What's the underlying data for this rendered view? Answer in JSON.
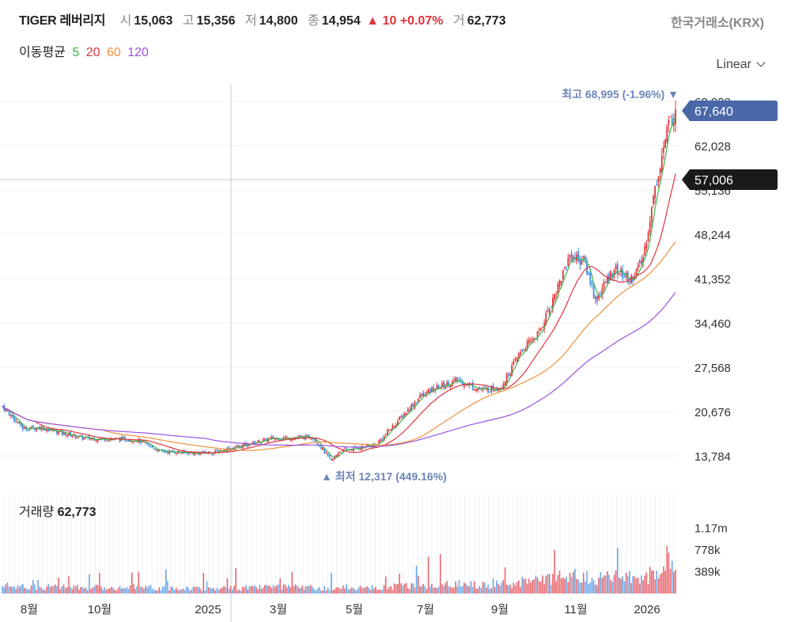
{
  "header": {
    "name": "TIGER 레버리지",
    "open_label": "시",
    "open": "15,063",
    "high_label": "고",
    "high": "15,356",
    "low_label": "저",
    "low": "14,800",
    "close_label": "종",
    "close": "14,954",
    "change": "▲ 10 +0.07%",
    "volume_label": "거",
    "volume": "62,773",
    "exchange": "한국거래소(KRX)"
  },
  "moving_average": {
    "label": "이동평균",
    "periods": [
      {
        "value": "5",
        "color": "#3bb54a"
      },
      {
        "value": "20",
        "color": "#e0353f"
      },
      {
        "value": "60",
        "color": "#f0913a"
      },
      {
        "value": "120",
        "color": "#9a52e0"
      }
    ]
  },
  "scale_selector": "Linear",
  "colors": {
    "up": "#e0353f",
    "down": "#3c8be0",
    "price_tag": "#4a67a8",
    "crosshair_tag": "#1a1a1a",
    "annot": "#6c85b8"
  },
  "annotations": {
    "high": "최고 68,995 (-1.96%) ▼",
    "low": "▲ 최저 12,317 (449.16%)",
    "last_price": "67,640",
    "crosshair_price": "57,006"
  },
  "volume_panel": {
    "label": "거래량",
    "value": "62,773"
  },
  "chart_data": {
    "type": "candlestick",
    "title": "TIGER 레버리지",
    "y_ticks": [
      "68,920",
      "62,028",
      "55,136",
      "48,244",
      "41,352",
      "34,460",
      "27,568",
      "20,676",
      "13,784"
    ],
    "y_tick_values": [
      68920,
      62028,
      55136,
      48244,
      41352,
      34460,
      27568,
      20676,
      13784
    ],
    "x_ticks": [
      "8월",
      "10월",
      "2025",
      "3월",
      "5월",
      "7월",
      "9월",
      "11월",
      "2026"
    ],
    "volume_ticks": [
      "1.17m",
      "778k",
      "389k"
    ],
    "volume_tick_values": [
      1170000,
      778000,
      389000
    ],
    "close_path": [
      [
        "2024-07-15",
        21500
      ],
      [
        "2024-08-01",
        18000
      ],
      [
        "2024-08-15",
        18200
      ],
      [
        "2024-09-20",
        16500
      ],
      [
        "2024-11-01",
        16300
      ],
      [
        "2024-11-20",
        14500
      ],
      [
        "2024-12-20",
        14200
      ],
      [
        "2025-01-02",
        14300
      ],
      [
        "2025-01-25",
        15300
      ],
      [
        "2025-02-20",
        16500
      ],
      [
        "2025-03-25",
        16700
      ],
      [
        "2025-04-09",
        12900
      ],
      [
        "2025-04-15",
        14500
      ],
      [
        "2025-05-15",
        15500
      ],
      [
        "2025-06-01",
        19000
      ],
      [
        "2025-06-20",
        23000
      ],
      [
        "2025-07-05",
        24500
      ],
      [
        "2025-07-20",
        25500
      ],
      [
        "2025-08-10",
        24000
      ],
      [
        "2025-08-25",
        24500
      ],
      [
        "2025-09-10",
        30000
      ],
      [
        "2025-09-25",
        33000
      ],
      [
        "2025-10-10",
        40000
      ],
      [
        "2025-10-20",
        45000
      ],
      [
        "2025-11-01",
        44000
      ],
      [
        "2025-11-10",
        38000
      ],
      [
        "2025-11-25",
        43000
      ],
      [
        "2025-12-08",
        41000
      ],
      [
        "2025-12-18",
        44000
      ],
      [
        "2025-12-30",
        57000
      ],
      [
        "2026-01-08",
        65000
      ],
      [
        "2026-01-14",
        67640
      ]
    ],
    "moving_averages": [
      5,
      20,
      60,
      120
    ],
    "ylim": [
      12000,
      70000
    ],
    "scale": "Linear"
  }
}
